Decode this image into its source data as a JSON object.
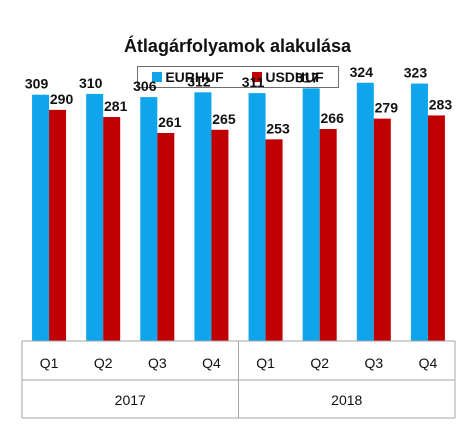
{
  "chart_data": {
    "type": "bar",
    "title": "Átlagárfolyamok alakulása",
    "categories": [
      "Q1",
      "Q2",
      "Q3",
      "Q4",
      "Q1",
      "Q2",
      "Q3",
      "Q4"
    ],
    "groups": [
      {
        "label": "2017",
        "span": 4
      },
      {
        "label": "2018",
        "span": 4
      }
    ],
    "series": [
      {
        "name": "EURHUF",
        "color": "#0ea5ec",
        "values": [
          309,
          310,
          306,
          312,
          311,
          317,
          324,
          323
        ]
      },
      {
        "name": "USDHUF",
        "color": "#c00000",
        "values": [
          290,
          281,
          261,
          265,
          253,
          266,
          279,
          283
        ]
      }
    ],
    "legend": "top-center",
    "grid": false,
    "ylim": [
      0,
      340
    ]
  }
}
